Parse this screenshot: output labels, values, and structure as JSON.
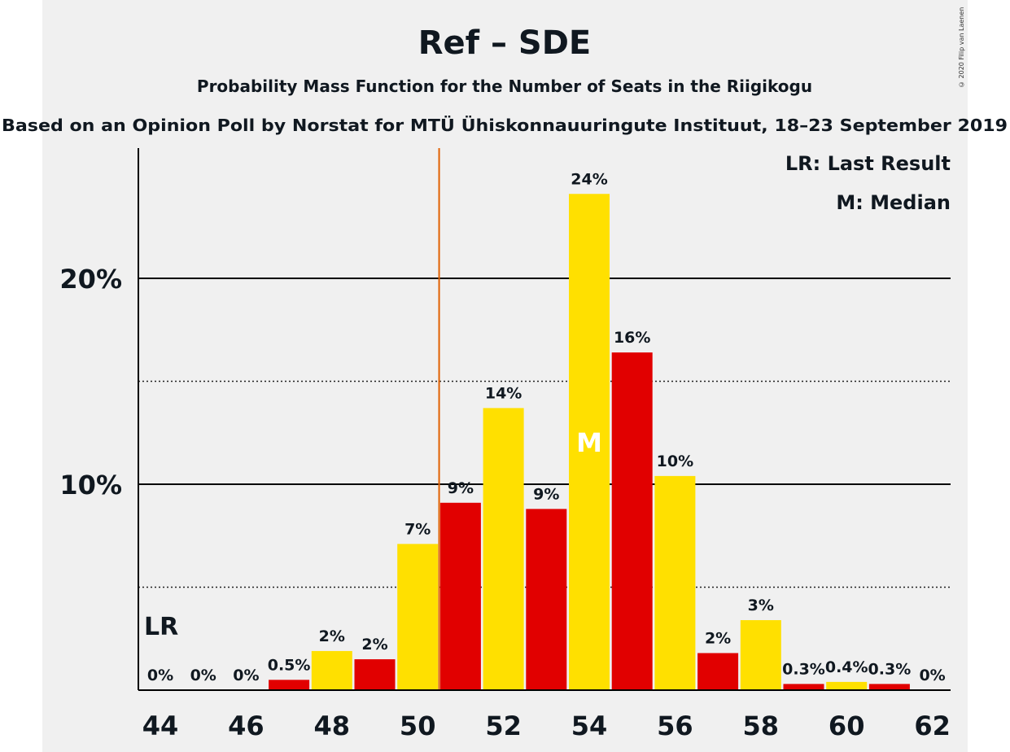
{
  "copyright": "© 2020 Filip van Laenen",
  "colors": {
    "background": "#f0f0f0",
    "bar_red": "#e10000",
    "bar_yellow": "#ffe000",
    "last_result_line": "#e06000",
    "text": "#101820"
  },
  "chart_data": {
    "type": "bar",
    "title": "Ref – SDE",
    "subtitle": "Probability Mass Function for the Number of Seats in the Riigikogu",
    "subtitle2": "Based on an Opinion Poll by Norstat for MTÜ Ühiskonnauuringute Instituut, 18–23 September 2019",
    "x": [
      44,
      45,
      46,
      47,
      48,
      49,
      50,
      51,
      52,
      53,
      54,
      55,
      56,
      57,
      58,
      59,
      60,
      61,
      62
    ],
    "values": [
      0,
      0,
      0,
      0.5,
      1.9,
      1.5,
      7.1,
      9.1,
      13.7,
      8.8,
      24.1,
      16.4,
      10.4,
      1.8,
      3.4,
      0.3,
      0.4,
      0.3,
      0
    ],
    "labels": [
      "0%",
      "0%",
      "0%",
      "0.5%",
      "2%",
      "2%",
      "7%",
      "9%",
      "14%",
      "9%",
      "24%",
      "16%",
      "10%",
      "2%",
      "3%",
      "0.3%",
      "0.4%",
      "0.3%",
      "0%"
    ],
    "x_ticks": [
      "44",
      "46",
      "48",
      "50",
      "52",
      "54",
      "56",
      "58",
      "60",
      "62"
    ],
    "y_ticks": [
      "10%",
      "20%"
    ],
    "ylim": [
      0,
      26
    ],
    "last_result": 44,
    "last_result_label": "LR",
    "median": 54,
    "median_label": "M",
    "majority_line_after": 50,
    "legend": [
      "LR: Last Result",
      "M: Median"
    ],
    "legend_position": "top-right"
  }
}
